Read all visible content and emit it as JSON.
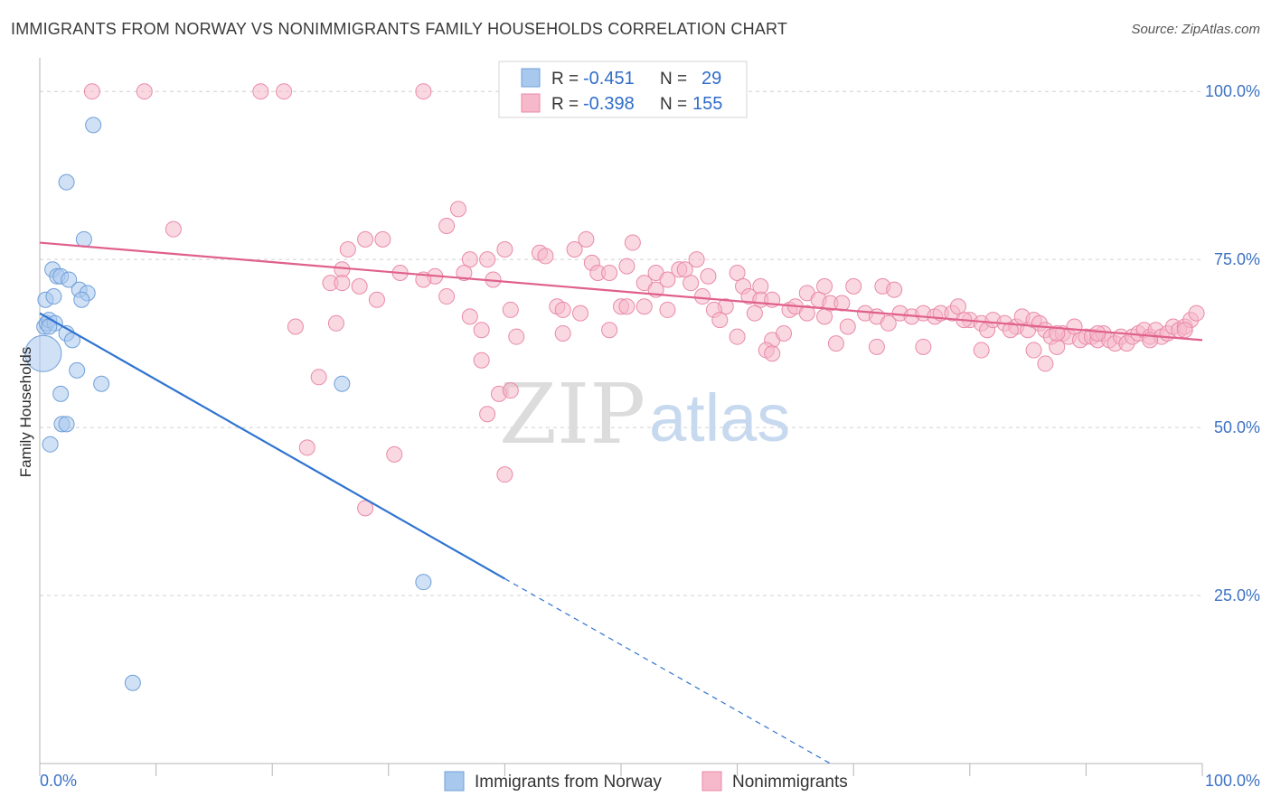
{
  "title": "IMMIGRANTS FROM NORWAY VS NONIMMIGRANTS FAMILY HOUSEHOLDS CORRELATION CHART",
  "source": "Source: ZipAtlas.com",
  "watermark": {
    "zip": "ZIP",
    "atlas": "atlas"
  },
  "colors": {
    "blue_fill": "#a9c8ee",
    "blue_stroke": "#6f9fd8",
    "blue_line": "#2f74d0",
    "pink_fill": "#f6b8cb",
    "pink_stroke": "#e98aa8",
    "pink_line": "#e0608c",
    "grid": "#d0d0d0",
    "tick_text": "#3d72c4"
  },
  "legend": {
    "rows": [
      {
        "r_label": "R = ",
        "r_value": "-0.451",
        "n_label": "N = ",
        "n_value": "29"
      },
      {
        "r_label": "R = ",
        "r_value": "-0.398",
        "n_label": "N = ",
        "n_value": "155"
      }
    ]
  },
  "chart_data": {
    "type": "scatter",
    "xlabel": "",
    "ylabel": "Family Households",
    "xlim": [
      0,
      100
    ],
    "ylim": [
      0,
      105
    ],
    "x_tick_labels": [
      "0.0%",
      "100.0%"
    ],
    "y_ticks": [
      25,
      50,
      75,
      100
    ],
    "y_tick_labels": [
      "25.0%",
      "50.0%",
      "75.0%",
      "100.0%"
    ],
    "grid": true,
    "legend_position": "bottom",
    "series": [
      {
        "name": "Immigrants from Norway",
        "color": "#a9c8ee",
        "points": [
          [
            0.3,
            61.0,
            1
          ],
          [
            0.4,
            65.0,
            0
          ],
          [
            0.6,
            65.5,
            0
          ],
          [
            0.8,
            66.0,
            0
          ],
          [
            0.5,
            69.0,
            0
          ],
          [
            1.2,
            69.5,
            0
          ],
          [
            1.1,
            73.5,
            0
          ],
          [
            1.5,
            72.5,
            0
          ],
          [
            1.8,
            72.5,
            0
          ],
          [
            2.5,
            72.0,
            0
          ],
          [
            3.4,
            70.5,
            0
          ],
          [
            4.1,
            70.0,
            0
          ],
          [
            3.6,
            69.0,
            0
          ],
          [
            1.3,
            65.5,
            0
          ],
          [
            2.3,
            64.0,
            0
          ],
          [
            2.8,
            63.0,
            0
          ],
          [
            3.2,
            58.5,
            0
          ],
          [
            5.3,
            56.5,
            0
          ],
          [
            1.8,
            55.0,
            0
          ],
          [
            1.9,
            50.5,
            0
          ],
          [
            2.3,
            50.5,
            0
          ],
          [
            0.9,
            47.5,
            0
          ],
          [
            2.3,
            86.5,
            0
          ],
          [
            3.8,
            78.0,
            0
          ],
          [
            4.6,
            95.0,
            0
          ],
          [
            26.0,
            56.5,
            0
          ],
          [
            33.0,
            27.0,
            0
          ],
          [
            8.0,
            12.0,
            0
          ],
          [
            0.8,
            65.0,
            0
          ]
        ]
      },
      {
        "name": "Nonimmigrants",
        "color": "#f6b8cb",
        "points": [
          [
            4.5,
            100,
            0
          ],
          [
            9.0,
            100,
            0
          ],
          [
            19.0,
            100,
            0
          ],
          [
            21.0,
            100,
            0
          ],
          [
            33.0,
            100,
            0
          ],
          [
            11.5,
            79.5,
            0
          ],
          [
            36.0,
            82.5,
            0
          ],
          [
            35.0,
            80.0,
            0
          ],
          [
            28.0,
            78.0,
            0
          ],
          [
            29.5,
            78.0,
            0
          ],
          [
            26.5,
            76.5,
            0
          ],
          [
            37.0,
            75.0,
            0
          ],
          [
            38.5,
            75.0,
            0
          ],
          [
            40.0,
            76.5,
            0
          ],
          [
            43.0,
            76.0,
            0
          ],
          [
            43.5,
            75.5,
            0
          ],
          [
            46.0,
            76.5,
            0
          ],
          [
            47.0,
            78.0,
            0
          ],
          [
            51.0,
            77.5,
            0
          ],
          [
            47.5,
            74.5,
            0
          ],
          [
            50.5,
            74.0,
            0
          ],
          [
            56.5,
            75.0,
            0
          ],
          [
            26.0,
            73.5,
            0
          ],
          [
            31.0,
            73.0,
            0
          ],
          [
            34.0,
            72.5,
            0
          ],
          [
            36.5,
            73.0,
            0
          ],
          [
            39.0,
            72.0,
            0
          ],
          [
            48.0,
            73.0,
            0
          ],
          [
            49.0,
            73.0,
            0
          ],
          [
            53.0,
            73.0,
            0
          ],
          [
            54.0,
            72.0,
            0
          ],
          [
            55.0,
            73.5,
            0
          ],
          [
            55.5,
            73.5,
            0
          ],
          [
            57.5,
            72.5,
            0
          ],
          [
            60.0,
            73.0,
            0
          ],
          [
            25.0,
            71.5,
            0
          ],
          [
            26.0,
            71.5,
            0
          ],
          [
            27.5,
            71.0,
            0
          ],
          [
            33.0,
            72.0,
            0
          ],
          [
            52.0,
            71.5,
            0
          ],
          [
            53.0,
            70.5,
            0
          ],
          [
            56.0,
            71.5,
            0
          ],
          [
            60.5,
            71.0,
            0
          ],
          [
            62.0,
            71.0,
            0
          ],
          [
            67.5,
            71.0,
            0
          ],
          [
            70.0,
            71.0,
            0
          ],
          [
            72.5,
            71.0,
            0
          ],
          [
            29.0,
            69.0,
            0
          ],
          [
            35.0,
            69.5,
            0
          ],
          [
            40.5,
            67.5,
            0
          ],
          [
            44.5,
            68.0,
            0
          ],
          [
            45.0,
            67.5,
            0
          ],
          [
            50.0,
            68.0,
            0
          ],
          [
            50.5,
            68.0,
            0
          ],
          [
            52.0,
            68.0,
            0
          ],
          [
            54.0,
            67.5,
            0
          ],
          [
            57.0,
            69.5,
            0
          ],
          [
            59.0,
            68.0,
            0
          ],
          [
            58.0,
            67.5,
            0
          ],
          [
            61.0,
            69.5,
            0
          ],
          [
            62.0,
            69.0,
            0
          ],
          [
            63.0,
            69.0,
            0
          ],
          [
            64.5,
            67.5,
            0
          ],
          [
            65.0,
            68.0,
            0
          ],
          [
            66.0,
            70.0,
            0
          ],
          [
            67.0,
            69.0,
            0
          ],
          [
            67.5,
            66.5,
            0
          ],
          [
            68.0,
            68.5,
            0
          ],
          [
            69.0,
            68.5,
            0
          ],
          [
            71.0,
            67.0,
            0
          ],
          [
            72.0,
            66.5,
            0
          ],
          [
            73.5,
            70.5,
            0
          ],
          [
            74.0,
            67.0,
            0
          ],
          [
            75.0,
            66.5,
            0
          ],
          [
            76.0,
            67.0,
            0
          ],
          [
            77.0,
            66.5,
            0
          ],
          [
            77.5,
            67.0,
            0
          ],
          [
            78.5,
            67.0,
            0
          ],
          [
            79.0,
            68.0,
            0
          ],
          [
            80.0,
            66.0,
            0
          ],
          [
            81.0,
            65.5,
            0
          ],
          [
            81.5,
            64.5,
            0
          ],
          [
            82.0,
            66.0,
            0
          ],
          [
            83.0,
            65.5,
            0
          ],
          [
            84.0,
            65.0,
            0
          ],
          [
            84.5,
            66.5,
            0
          ],
          [
            85.0,
            64.5,
            0
          ],
          [
            85.5,
            66.0,
            0
          ],
          [
            86.0,
            65.5,
            0
          ],
          [
            86.5,
            64.5,
            0
          ],
          [
            87.0,
            63.5,
            0
          ],
          [
            87.5,
            62.0,
            0
          ],
          [
            88.0,
            64.0,
            0
          ],
          [
            88.5,
            63.5,
            0
          ],
          [
            89.0,
            65.0,
            0
          ],
          [
            89.5,
            63.0,
            0
          ],
          [
            90.0,
            63.5,
            0
          ],
          [
            90.5,
            63.5,
            0
          ],
          [
            91.0,
            63.0,
            0
          ],
          [
            91.5,
            64.0,
            0
          ],
          [
            92.0,
            63.0,
            0
          ],
          [
            92.5,
            62.5,
            0
          ],
          [
            93.0,
            63.5,
            0
          ],
          [
            93.5,
            62.5,
            0
          ],
          [
            94.0,
            63.5,
            0
          ],
          [
            94.5,
            64.0,
            0
          ],
          [
            95.0,
            64.5,
            0
          ],
          [
            95.5,
            63.5,
            0
          ],
          [
            96.0,
            64.5,
            0
          ],
          [
            96.5,
            63.5,
            0
          ],
          [
            97.0,
            64.0,
            0
          ],
          [
            97.5,
            65.0,
            0
          ],
          [
            98.0,
            64.5,
            0
          ],
          [
            98.5,
            65.0,
            0
          ],
          [
            99.0,
            66.0,
            0
          ],
          [
            99.5,
            67.0,
            0
          ],
          [
            22.0,
            65.0,
            0
          ],
          [
            25.5,
            65.5,
            0
          ],
          [
            38.0,
            64.5,
            0
          ],
          [
            41.0,
            63.5,
            0
          ],
          [
            45.0,
            64.0,
            0
          ],
          [
            49.0,
            64.5,
            0
          ],
          [
            60.0,
            63.5,
            0
          ],
          [
            63.0,
            63.0,
            0
          ],
          [
            64.0,
            64.0,
            0
          ],
          [
            68.5,
            62.5,
            0
          ],
          [
            72.0,
            62.0,
            0
          ],
          [
            76.0,
            62.0,
            0
          ],
          [
            81.0,
            61.5,
            0
          ],
          [
            85.5,
            61.5,
            0
          ],
          [
            86.5,
            59.5,
            0
          ],
          [
            62.5,
            61.5,
            0
          ],
          [
            63.0,
            61.0,
            0
          ],
          [
            38.0,
            60.0,
            0
          ],
          [
            24.0,
            57.5,
            0
          ],
          [
            39.5,
            55.0,
            0
          ],
          [
            40.5,
            55.5,
            0
          ],
          [
            38.5,
            52.0,
            0
          ],
          [
            23.0,
            47.0,
            0
          ],
          [
            30.5,
            46.0,
            0
          ],
          [
            40.0,
            43.0,
            0
          ],
          [
            28.0,
            38.0,
            0
          ],
          [
            37.0,
            66.5,
            0
          ],
          [
            46.5,
            67.0,
            0
          ],
          [
            58.5,
            66.0,
            0
          ],
          [
            61.5,
            67.0,
            0
          ],
          [
            66.0,
            67.0,
            0
          ],
          [
            69.5,
            65.0,
            0
          ],
          [
            73.0,
            65.5,
            0
          ],
          [
            79.5,
            66.0,
            0
          ],
          [
            83.5,
            64.5,
            0
          ],
          [
            87.5,
            64.0,
            0
          ],
          [
            91.0,
            64.0,
            0
          ],
          [
            95.5,
            63.0,
            0
          ],
          [
            98.5,
            64.5,
            0
          ]
        ]
      }
    ],
    "trend_lines": [
      {
        "series": "Immigrants from Norway",
        "x_solid": [
          0,
          40
        ],
        "y_solid": [
          67.0,
          27.5
        ],
        "x_dashed": [
          40,
          68
        ],
        "y_dashed": [
          27.5,
          0
        ]
      },
      {
        "series": "Nonimmigrants",
        "x": [
          0,
          100
        ],
        "y": [
          77.5,
          63.0
        ]
      }
    ]
  },
  "bottom_legend": {
    "items": [
      {
        "label": "Immigrants from Norway"
      },
      {
        "label": "Nonimmigrants"
      }
    ]
  }
}
